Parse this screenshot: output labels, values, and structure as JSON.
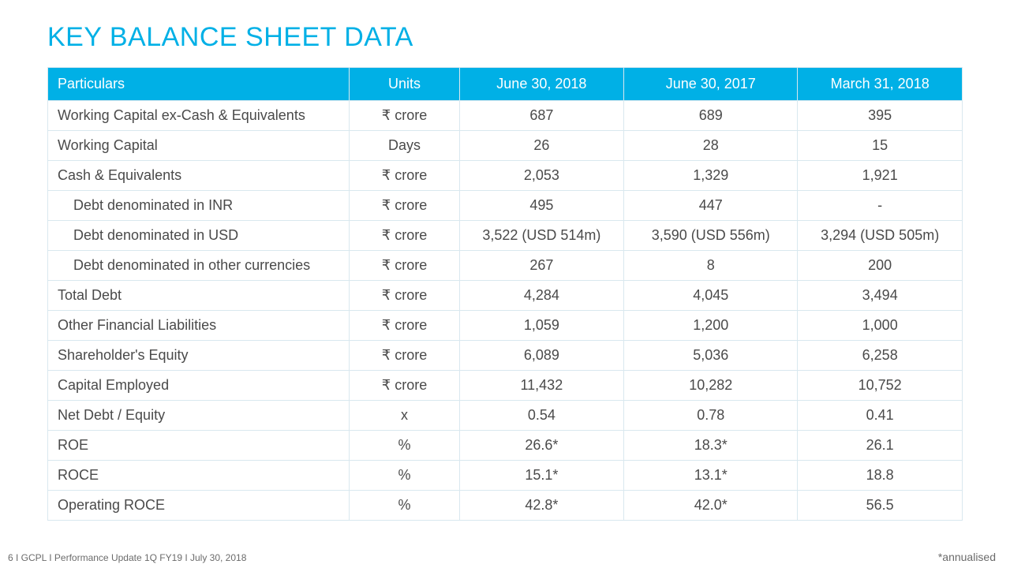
{
  "title": "KEY BALANCE SHEET DATA",
  "footer_left": "6 I GCPL I Performance Update 1Q FY19 I July 30, 2018",
  "footer_right": "*annualised",
  "colors": {
    "accent": "#00b0e6",
    "header_text": "#ffffff",
    "cell_text": "#4a4a4a",
    "border": "#d9e8ef",
    "background": "#ffffff"
  },
  "typography": {
    "title_fontsize": 34,
    "header_fontsize": 18,
    "cell_fontsize": 18,
    "footer_fontsize": 12
  },
  "table": {
    "type": "table",
    "column_widths_pct": [
      33,
      12,
      18,
      19,
      18
    ],
    "columns": [
      {
        "label": "Particulars",
        "align": "left"
      },
      {
        "label": "Units",
        "align": "center"
      },
      {
        "label": "June 30, 2018",
        "align": "center"
      },
      {
        "label": "June 30, 2017",
        "align": "center"
      },
      {
        "label": "March 31, 2018",
        "align": "center"
      }
    ],
    "rows": [
      {
        "indent": false,
        "cells": [
          "Working Capital ex-Cash & Equivalents",
          "₹ crore",
          "687",
          "689",
          "395"
        ]
      },
      {
        "indent": false,
        "cells": [
          "Working Capital",
          "Days",
          "26",
          "28",
          "15"
        ]
      },
      {
        "indent": false,
        "cells": [
          "Cash & Equivalents",
          "₹ crore",
          "2,053",
          "1,329",
          "1,921"
        ]
      },
      {
        "indent": true,
        "cells": [
          "Debt denominated in INR",
          "₹ crore",
          "495",
          "447",
          "-"
        ]
      },
      {
        "indent": true,
        "cells": [
          "Debt denominated in USD",
          "₹ crore",
          "3,522 (USD 514m)",
          "3,590 (USD 556m)",
          "3,294 (USD 505m)"
        ]
      },
      {
        "indent": true,
        "cells": [
          "Debt denominated in other currencies",
          "₹ crore",
          "267",
          "8",
          "200"
        ]
      },
      {
        "indent": false,
        "cells": [
          "Total Debt",
          "₹ crore",
          "4,284",
          "4,045",
          "3,494"
        ]
      },
      {
        "indent": false,
        "cells": [
          "Other Financial Liabilities",
          "₹ crore",
          "1,059",
          "1,200",
          "1,000"
        ]
      },
      {
        "indent": false,
        "cells": [
          "Shareholder's Equity",
          "₹ crore",
          "6,089",
          "5,036",
          "6,258"
        ]
      },
      {
        "indent": false,
        "cells": [
          "Capital Employed",
          "₹ crore",
          "11,432",
          "10,282",
          "10,752"
        ]
      },
      {
        "indent": false,
        "cells": [
          "Net Debt / Equity",
          "x",
          "0.54",
          "0.78",
          "0.41"
        ]
      },
      {
        "indent": false,
        "cells": [
          "ROE",
          "%",
          "26.6*",
          "18.3*",
          "26.1"
        ]
      },
      {
        "indent": false,
        "cells": [
          "ROCE",
          "%",
          "15.1*",
          "13.1*",
          "18.8"
        ]
      },
      {
        "indent": false,
        "cells": [
          "Operating ROCE",
          "%",
          "42.8*",
          "42.0*",
          "56.5"
        ]
      }
    ]
  }
}
